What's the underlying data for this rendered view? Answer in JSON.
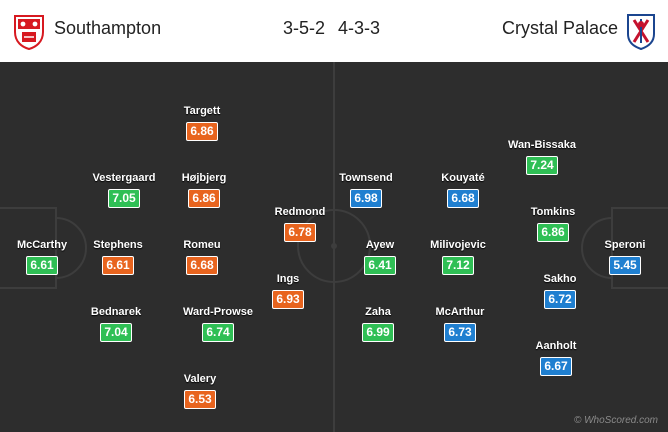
{
  "home": {
    "name": "Southampton",
    "formation": "3-5-2",
    "badge_icon": "southampton-crest-icon",
    "color_red": "#d71920",
    "players": [
      {
        "name": "McCarthy",
        "rating": "6.61",
        "level": "green"
      },
      {
        "name": "Vestergaard",
        "rating": "7.05",
        "level": "green"
      },
      {
        "name": "Stephens",
        "rating": "6.61",
        "level": "orange"
      },
      {
        "name": "Bednarek",
        "rating": "7.04",
        "level": "green"
      },
      {
        "name": "Targett",
        "rating": "6.86",
        "level": "orange"
      },
      {
        "name": "Højbjerg",
        "rating": "6.86",
        "level": "orange"
      },
      {
        "name": "Romeu",
        "rating": "6.68",
        "level": "orange"
      },
      {
        "name": "Ward-Prowse",
        "rating": "6.74",
        "level": "green"
      },
      {
        "name": "Valery",
        "rating": "6.53",
        "level": "orange"
      },
      {
        "name": "Redmond",
        "rating": "6.78",
        "level": "orange"
      },
      {
        "name": "Ings",
        "rating": "6.93",
        "level": "orange"
      }
    ]
  },
  "away": {
    "name": "Crystal Palace",
    "formation": "4-3-3",
    "badge_icon": "crystal-palace-crest-icon",
    "color_blue": "#1b458f",
    "color_red": "#c4122e",
    "players": [
      {
        "name": "Townsend",
        "rating": "6.98",
        "level": "blue"
      },
      {
        "name": "Ayew",
        "rating": "6.41",
        "level": "green"
      },
      {
        "name": "Zaha",
        "rating": "6.99",
        "level": "green"
      },
      {
        "name": "Kouyaté",
        "rating": "6.68",
        "level": "blue"
      },
      {
        "name": "Milivojevic",
        "rating": "7.12",
        "level": "green"
      },
      {
        "name": "McArthur",
        "rating": "6.73",
        "level": "blue"
      },
      {
        "name": "Wan-Bissaka",
        "rating": "7.24",
        "level": "green"
      },
      {
        "name": "Tomkins",
        "rating": "6.86",
        "level": "green"
      },
      {
        "name": "Sakho",
        "rating": "6.72",
        "level": "blue"
      },
      {
        "name": "Aanholt",
        "rating": "6.67",
        "level": "blue"
      },
      {
        "name": "Speroni",
        "rating": "5.45",
        "level": "blue"
      }
    ]
  },
  "rating_colors": {
    "green": "#2fbf55",
    "orange": "#e8641e",
    "blue": "#1f7fd0"
  },
  "watermark": "© WhoScored.com"
}
